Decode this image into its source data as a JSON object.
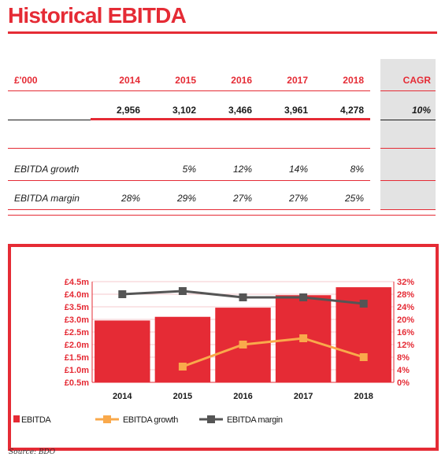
{
  "page": {
    "title": "Historical EBITDA",
    "source": "Source: BDO"
  },
  "table": {
    "unit_label": "£'000",
    "years": [
      "2014",
      "2015",
      "2016",
      "2017",
      "2018"
    ],
    "cagr_label": "CAGR",
    "ebitda_values": [
      "2,956",
      "3,102",
      "3,466",
      "3,961",
      "4,278"
    ],
    "ebitda_cagr": "10%",
    "growth_label": "EBITDA growth",
    "growth_values": [
      "",
      "5%",
      "12%",
      "14%",
      "8%"
    ],
    "margin_label": "EBITDA margin",
    "margin_values": [
      "28%",
      "29%",
      "27%",
      "27%",
      "25%"
    ]
  },
  "chart_data": {
    "type": "bar",
    "categories": [
      "2014",
      "2015",
      "2016",
      "2017",
      "2018"
    ],
    "series": [
      {
        "name": "EBITDA",
        "type": "bar",
        "axis": "left",
        "values": [
          2.956,
          3.102,
          3.466,
          3.961,
          4.278
        ],
        "color": "#e52b35"
      },
      {
        "name": "EBITDA growth",
        "type": "line",
        "axis": "right",
        "values": [
          null,
          5,
          12,
          14,
          8
        ],
        "color": "#f9a94b"
      },
      {
        "name": "EBITDA margin",
        "type": "line",
        "axis": "right",
        "values": [
          28,
          29,
          27,
          27,
          25
        ],
        "color": "#555555"
      }
    ],
    "y_left": {
      "min": 0.5,
      "max": 4.5,
      "step": 0.5,
      "ticks": [
        "£0.5m",
        "£1.0m",
        "£1.5m",
        "£2.0m",
        "£2.5m",
        "£3.0m",
        "£3.5m",
        "£4.0m",
        "£4.5m"
      ]
    },
    "y_right": {
      "min": 0,
      "max": 32,
      "step": 4,
      "ticks": [
        "0%",
        "4%",
        "8%",
        "12%",
        "16%",
        "20%",
        "24%",
        "28%",
        "32%"
      ]
    },
    "gridlines": true,
    "legend_placement": "bottom-left",
    "accent_color": "#e52b35"
  }
}
